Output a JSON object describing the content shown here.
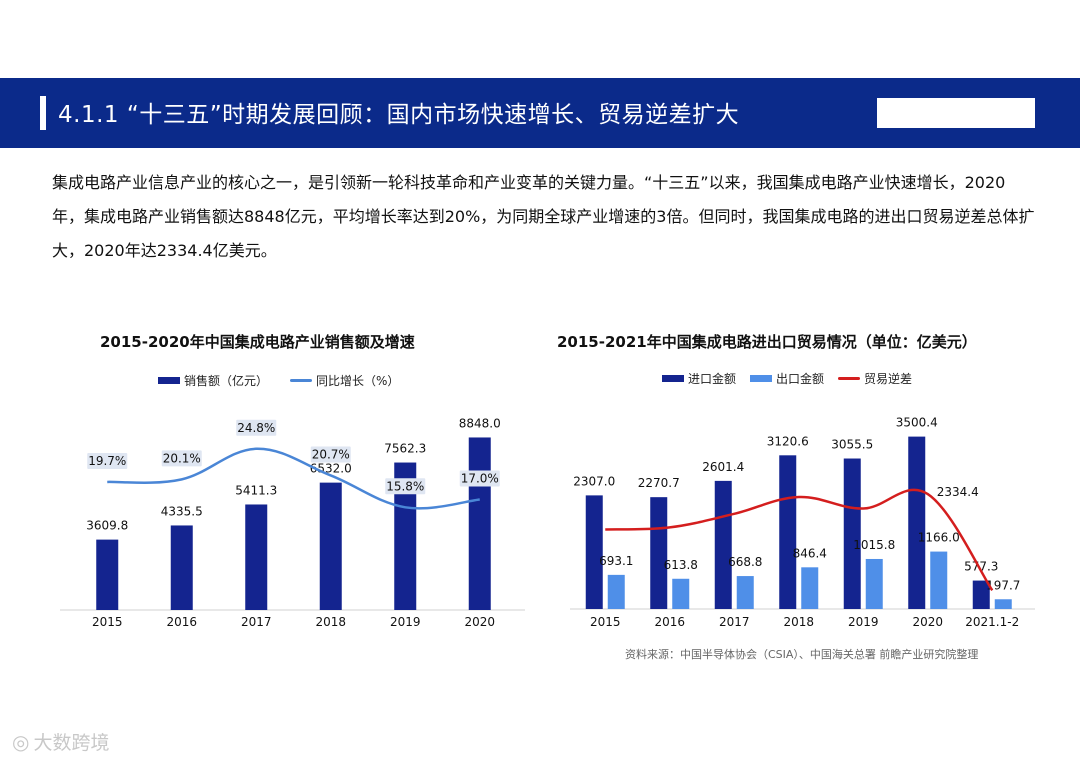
{
  "header": {
    "title": "4.1.1 “十三五”时期发展回顾：国内市场快速增长、贸易逆差扩大"
  },
  "intro": "集成电路产业信息产业的核心之一，是引领新一轮科技革命和产业变革的关键力量。“十三五”以来，我国集成电路产业快速增长，2020年，集成电路产业销售额达8848亿元，平均增长率达到20%，为同期全球产业增速的3倍。但同时，我国集成电路的进出口贸易逆差总体扩大，2020年达2334.4亿美元。",
  "colors": {
    "header_bg": "#0b2a8a",
    "bar_dark": "#14248f",
    "bar_light": "#4f8fe8",
    "line_blue": "#4a86d6",
    "line_red": "#d41e1e"
  },
  "chart_data": [
    {
      "type": "bar",
      "title": "2015-2020年中国集成电路产业销售额及增速",
      "categories": [
        "2015",
        "2016",
        "2017",
        "2018",
        "2019",
        "2020"
      ],
      "series": [
        {
          "name": "销售额（亿元）",
          "type": "bar",
          "values": [
            3609.8,
            4335.5,
            5411.3,
            6532.0,
            7562.3,
            8848.0
          ],
          "labels": [
            "3609.8",
            "4335.5",
            "5411.3",
            "6532.0",
            "7562.3",
            "8848.0"
          ]
        },
        {
          "name": "同比增长（%）",
          "type": "line",
          "axis": "secondary",
          "values": [
            19.7,
            20.1,
            24.8,
            20.7,
            15.8,
            17.0
          ],
          "labels": [
            "19.7%",
            "20.1%",
            "24.8%",
            "20.7%",
            "15.8%",
            "17.0%"
          ]
        }
      ],
      "ylim": [
        0,
        10000
      ],
      "y2lim": [
        0,
        30
      ],
      "legend": "top",
      "grid": false
    },
    {
      "type": "bar",
      "title": "2015-2021年中国集成电路进出口贸易情况（单位：亿美元）",
      "categories": [
        "2015",
        "2016",
        "2017",
        "2018",
        "2019",
        "2020",
        "2021.1-2"
      ],
      "series": [
        {
          "name": "进口金额",
          "type": "bar",
          "values": [
            2307.0,
            2270.7,
            2601.4,
            3120.6,
            3055.5,
            3500.4,
            577.3
          ],
          "labels": [
            "2307.0",
            "2270.7",
            "2601.4",
            "3120.6",
            "3055.5",
            "3500.4",
            "577.3"
          ]
        },
        {
          "name": "出口金额",
          "type": "bar",
          "values": [
            693.1,
            613.8,
            668.8,
            846.4,
            1015.8,
            1166.0,
            197.7
          ],
          "labels": [
            "693.1",
            "613.8",
            "668.8",
            "846.4",
            "1015.8",
            "1166.0",
            "197.7"
          ]
        },
        {
          "name": "贸易逆差",
          "type": "line",
          "values": [
            1613.9,
            1656.9,
            1932.6,
            2274.2,
            2039.7,
            2334.4,
            379.6
          ],
          "labels": [
            "",
            "",
            "",
            "",
            "",
            "2334.4",
            ""
          ]
        }
      ],
      "ylim": [
        0,
        4000
      ],
      "legend": "top",
      "grid": false
    }
  ],
  "source": "资料来源：中国半导体协会（CSIA）、中国海关总署 前瞻产业研究院整理",
  "watermark": "大数跨境"
}
